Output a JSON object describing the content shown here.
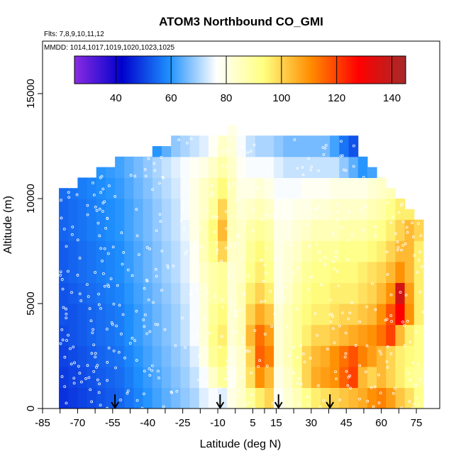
{
  "chart_data": {
    "type": "heatmap",
    "title": "ATOM3 Northbound CO_GMI",
    "subtitle_flights": "Flts: 7,8,9,10,11,12",
    "subtitle_dates": "MMDD: 1014,1017,1019,1020,1023,1025",
    "xlabel": "Latitude (deg N)",
    "ylabel": "Altitude (m)",
    "xlim": [
      -85,
      85
    ],
    "ylim": [
      0,
      17500
    ],
    "x_ticks": [
      -85,
      -70,
      -55,
      -40,
      -25,
      -10,
      5,
      15,
      30,
      45,
      60,
      75
    ],
    "y_ticks": [
      0,
      5000,
      10000,
      15000
    ],
    "colorbar": {
      "range": [
        25,
        145
      ],
      "ticks": [
        40,
        60,
        80,
        100,
        120,
        140
      ],
      "colors": [
        "#8a2be2",
        "#0000cc",
        "#1e90ff",
        "#ffffff",
        "#ffff80",
        "#ff8c00",
        "#ff0000",
        "#a52a2a"
      ]
    },
    "arrows_lat": [
      -54,
      -9,
      16,
      38
    ],
    "altitude_bands": [
      0,
      1000,
      2000,
      3000,
      4000,
      5000,
      6000,
      7000,
      8000,
      9000,
      10000,
      11000,
      12000,
      13000
    ],
    "lat_bins": [
      -76,
      -72,
      -68,
      -64,
      -60,
      -56,
      -52,
      -48,
      -44,
      -40,
      -36,
      -32,
      -28,
      -24,
      -20,
      -16,
      -12,
      -8,
      -4,
      0,
      4,
      8,
      12,
      16,
      20,
      24,
      28,
      32,
      36,
      40,
      44,
      48,
      52,
      56,
      60,
      64,
      68,
      72,
      76
    ],
    "max_alt_by_bin": [
      10500,
      10500,
      11000,
      11000,
      11500,
      11500,
      12000,
      12000,
      12000,
      12000,
      12500,
      12500,
      13000,
      13000,
      13000,
      13000,
      13000,
      13000,
      13500,
      13000,
      13000,
      13000,
      13000,
      13000,
      13000,
      13000,
      13000,
      13000,
      13000,
      13000,
      13000,
      13000,
      12000,
      11500,
      11000,
      10500,
      10000,
      9500,
      9000
    ],
    "co_values_ppb": [
      [
        48,
        49,
        50,
        51,
        52,
        53,
        54,
        56,
        58,
        60,
        62,
        64,
        66,
        68,
        70,
        74,
        76,
        74,
        80,
        84,
        90,
        96,
        100,
        78,
        82,
        86,
        92,
        96,
        98,
        100,
        102,
        104,
        106,
        110,
        112,
        108,
        102,
        98,
        92
      ],
      [
        49,
        50,
        51,
        52,
        53,
        54,
        55,
        57,
        59,
        61,
        63,
        65,
        67,
        69,
        72,
        76,
        84,
        90,
        78,
        84,
        98,
        110,
        104,
        80,
        84,
        90,
        100,
        106,
        108,
        110,
        116,
        120,
        104,
        100,
        104,
        100,
        96,
        92,
        90
      ],
      [
        50,
        51,
        52,
        53,
        54,
        55,
        56,
        58,
        60,
        62,
        64,
        66,
        68,
        70,
        74,
        80,
        90,
        94,
        80,
        84,
        100,
        116,
        112,
        82,
        86,
        92,
        100,
        104,
        106,
        110,
        114,
        118,
        112,
        108,
        104,
        100,
        96,
        94,
        92
      ],
      [
        51,
        52,
        53,
        54,
        55,
        56,
        57,
        59,
        61,
        63,
        65,
        67,
        69,
        72,
        76,
        82,
        92,
        96,
        82,
        86,
        104,
        114,
        108,
        82,
        86,
        90,
        96,
        100,
        100,
        102,
        104,
        106,
        108,
        110,
        114,
        120,
        104,
        96,
        92
      ],
      [
        52,
        52,
        53,
        54,
        55,
        56,
        57,
        59,
        61,
        63,
        65,
        67,
        69,
        72,
        76,
        82,
        90,
        94,
        82,
        86,
        100,
        106,
        102,
        82,
        86,
        90,
        94,
        96,
        96,
        98,
        100,
        100,
        102,
        104,
        110,
        118,
        128,
        110,
        96
      ],
      [
        52,
        53,
        54,
        55,
        56,
        57,
        58,
        60,
        62,
        64,
        66,
        68,
        70,
        73,
        76,
        82,
        88,
        90,
        82,
        86,
        96,
        100,
        96,
        80,
        84,
        88,
        92,
        94,
        94,
        96,
        96,
        96,
        98,
        100,
        104,
        110,
        136,
        108,
        96
      ],
      [
        53,
        54,
        55,
        56,
        57,
        58,
        59,
        61,
        63,
        65,
        67,
        69,
        71,
        74,
        78,
        84,
        88,
        90,
        82,
        84,
        92,
        96,
        92,
        80,
        82,
        86,
        90,
        92,
        92,
        94,
        94,
        94,
        96,
        98,
        100,
        104,
        110,
        104,
        96
      ],
      [
        53,
        54,
        55,
        56,
        57,
        58,
        59,
        61,
        63,
        65,
        67,
        69,
        71,
        74,
        78,
        86,
        92,
        100,
        84,
        84,
        90,
        94,
        90,
        80,
        82,
        84,
        88,
        90,
        90,
        90,
        92,
        92,
        92,
        94,
        96,
        100,
        104,
        104,
        96
      ],
      [
        54,
        55,
        56,
        57,
        58,
        59,
        60,
        62,
        64,
        66,
        68,
        70,
        72,
        75,
        80,
        86,
        94,
        104,
        86,
        84,
        88,
        90,
        88,
        80,
        80,
        82,
        84,
        86,
        86,
        86,
        88,
        88,
        88,
        90,
        92,
        96,
        100,
        104,
        100
      ],
      [
        54,
        55,
        56,
        57,
        58,
        59,
        60,
        62,
        64,
        66,
        68,
        70,
        72,
        76,
        80,
        84,
        90,
        100,
        86,
        82,
        84,
        86,
        84,
        78,
        78,
        80,
        80,
        82,
        82,
        84,
        84,
        84,
        84,
        86,
        88,
        92,
        96,
        96,
        92
      ],
      [
        55,
        56,
        57,
        58,
        59,
        60,
        61,
        63,
        65,
        67,
        69,
        71,
        73,
        76,
        80,
        84,
        88,
        94,
        86,
        80,
        80,
        82,
        80,
        76,
        76,
        76,
        78,
        78,
        78,
        80,
        80,
        80,
        80,
        82,
        84,
        86,
        88,
        88,
        86
      ],
      [
        56,
        57,
        58,
        59,
        60,
        61,
        62,
        64,
        66,
        68,
        70,
        72,
        74,
        76,
        78,
        80,
        84,
        88,
        84,
        78,
        76,
        76,
        76,
        74,
        72,
        72,
        72,
        72,
        72,
        72,
        68,
        64,
        60,
        62,
        64,
        66,
        68,
        70,
        70
      ],
      [
        50,
        48,
        46,
        44,
        44,
        46,
        48,
        50,
        52,
        56,
        60,
        64,
        68,
        70,
        72,
        74,
        78,
        84,
        82,
        76,
        72,
        70,
        70,
        68,
        66,
        66,
        66,
        66,
        66,
        62,
        56,
        52,
        50,
        52,
        54,
        56,
        58,
        60,
        60
      ],
      [
        48,
        46,
        44,
        42,
        42,
        44,
        46,
        48,
        50,
        54,
        58,
        62,
        66,
        68,
        70,
        72,
        76,
        82,
        80,
        74,
        70,
        68,
        68,
        66,
        64,
        64,
        64,
        64,
        64,
        58,
        50,
        48,
        48,
        50,
        52,
        54,
        56,
        58,
        58
      ]
    ]
  }
}
